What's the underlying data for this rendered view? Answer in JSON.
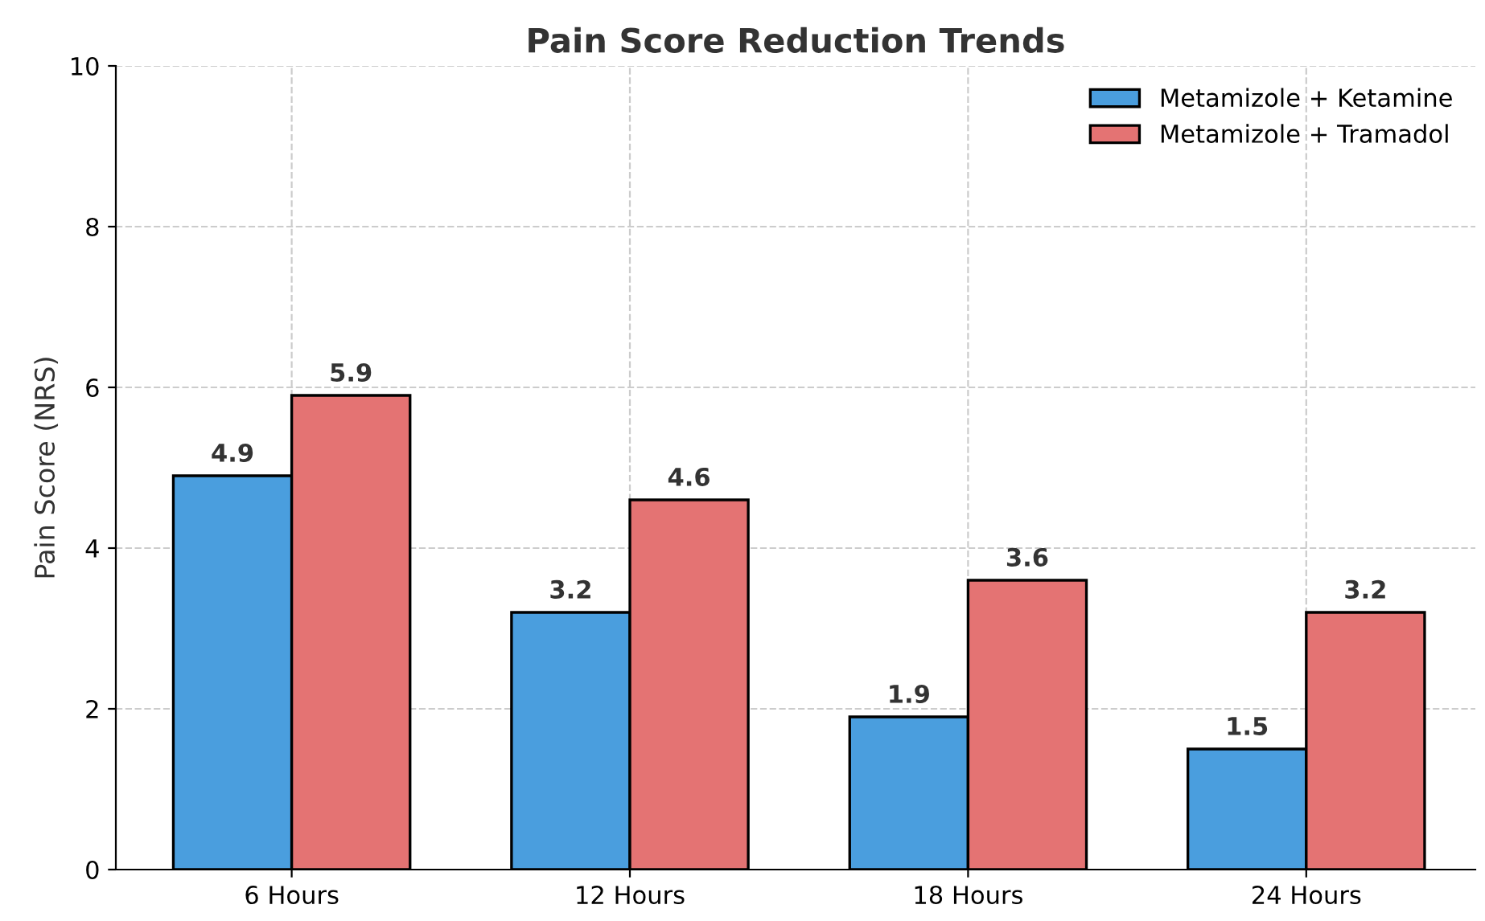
{
  "chart_data": {
    "type": "bar",
    "title": "Pain Score Reduction Trends",
    "ylabel": "Pain Score (NRS)",
    "categories": [
      "6 Hours",
      "12 Hours",
      "18 Hours",
      "24 Hours"
    ],
    "series": [
      {
        "name": "Metamizole + Ketamine",
        "color": "#4a9ede",
        "values": [
          4.9,
          3.2,
          1.9,
          1.5
        ]
      },
      {
        "name": "Metamizole + Tramadol",
        "color": "#e47373",
        "values": [
          5.9,
          4.6,
          3.6,
          3.2
        ]
      }
    ],
    "ylim": [
      0,
      10
    ],
    "yticks": [
      0,
      2,
      4,
      6,
      8,
      10
    ],
    "grid": true,
    "legend": "top right",
    "data_labels": true
  }
}
